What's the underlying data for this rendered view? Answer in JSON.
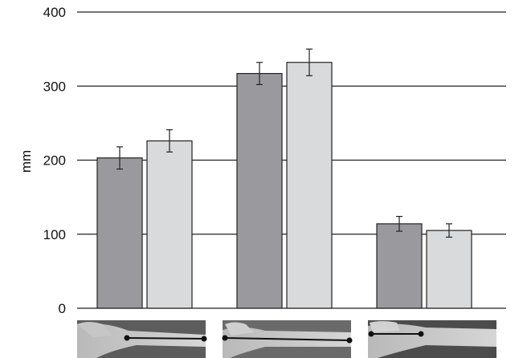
{
  "chart_data": {
    "type": "bar",
    "title": "",
    "xlabel": "",
    "ylabel": "mm",
    "ylim": [
      0,
      400
    ],
    "yticks": [
      "0",
      "100",
      "200",
      "300",
      "400"
    ],
    "grid": true,
    "legend": "none",
    "categories": [
      "",
      "",
      ""
    ],
    "category_images": [
      "forearm-length-photo",
      "arm-length-photo",
      "wrist-segment-photo"
    ],
    "series": [
      {
        "values": [
          203,
          317,
          114
        ],
        "errors": [
          15,
          15,
          10
        ],
        "color": "#9a9a9e"
      },
      {
        "values": [
          226,
          332,
          105
        ],
        "errors": [
          15,
          18,
          9
        ],
        "color": "#d9dadc"
      }
    ]
  }
}
